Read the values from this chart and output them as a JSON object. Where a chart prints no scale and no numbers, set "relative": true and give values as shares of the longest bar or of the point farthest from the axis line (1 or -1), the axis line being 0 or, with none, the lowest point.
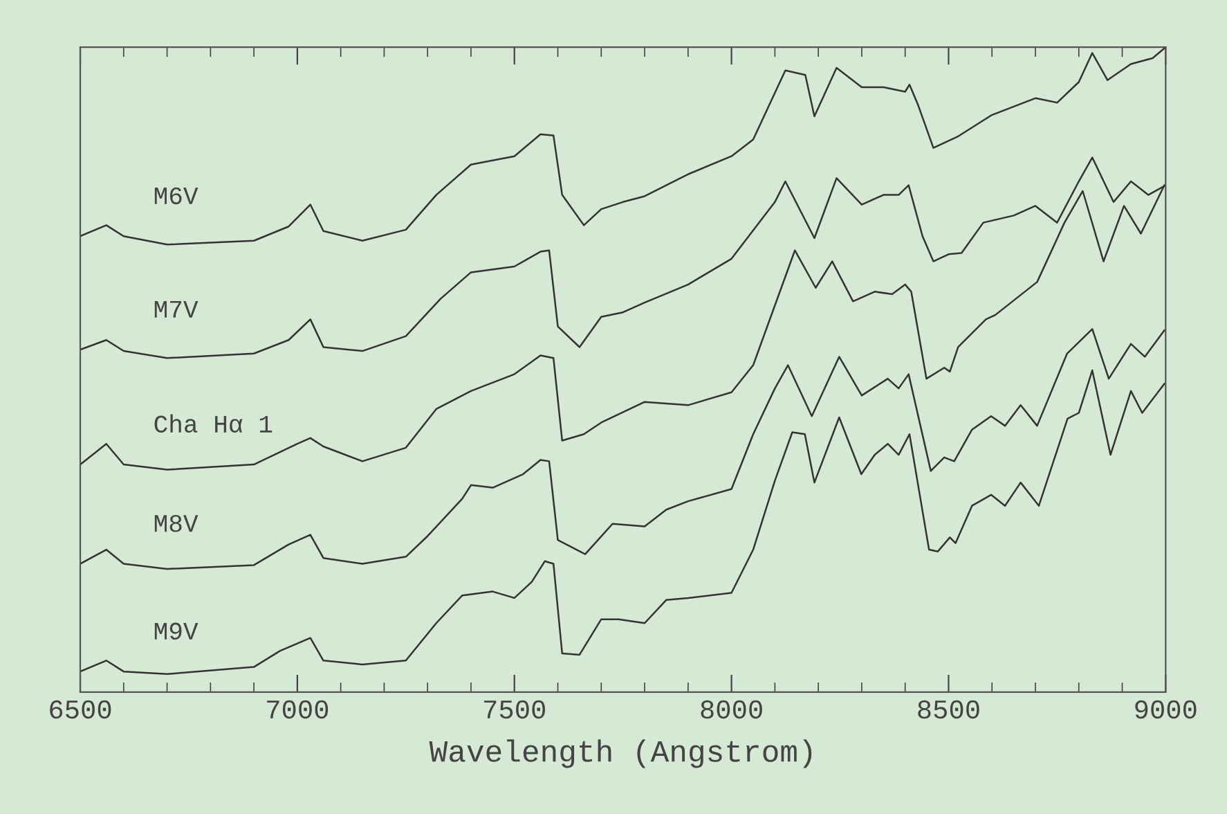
{
  "chart_data": {
    "type": "line",
    "relative": true,
    "xlabel": "Wavelength (Angstrom)",
    "xlim": [
      6500,
      9000
    ],
    "xticks": [
      6500,
      7000,
      7500,
      8000,
      8500,
      9000
    ],
    "grid": false,
    "legend": false,
    "marker": "none",
    "line_style": "solid",
    "series": [
      {
        "name": "M6V",
        "color": "#333333",
        "x": [
          6500,
          6560,
          6600,
          6700,
          6900,
          6980,
          7030,
          7060,
          7150,
          7250,
          7320,
          7400,
          7500,
          7560,
          7590,
          7610,
          7660,
          7700,
          7750,
          7800,
          7900,
          8000,
          8050,
          8124,
          8170,
          8191,
          8242,
          8300,
          8350,
          8400,
          8410,
          8430,
          8465,
          8520,
          8600,
          8700,
          8750,
          8800,
          8831,
          8866,
          8920,
          8970,
          9000
        ],
        "values": [
          0.707,
          0.724,
          0.707,
          0.694,
          0.7,
          0.722,
          0.756,
          0.715,
          0.7,
          0.717,
          0.771,
          0.818,
          0.831,
          0.865,
          0.863,
          0.771,
          0.724,
          0.749,
          0.76,
          0.769,
          0.803,
          0.831,
          0.857,
          0.964,
          0.957,
          0.893,
          0.968,
          0.938,
          0.938,
          0.931,
          0.942,
          0.91,
          0.844,
          0.861,
          0.895,
          0.921,
          0.914,
          0.946,
          0.991,
          0.949,
          0.974,
          0.983,
          1.0
        ]
      },
      {
        "name": "M7V",
        "color": "#333333",
        "x": [
          6500,
          6560,
          6600,
          6700,
          6900,
          6980,
          7030,
          7060,
          7150,
          7250,
          7330,
          7400,
          7500,
          7560,
          7580,
          7600,
          7650,
          7700,
          7750,
          7800,
          7900,
          8000,
          8100,
          8124,
          8191,
          8242,
          8300,
          8350,
          8385,
          8408,
          8440,
          8465,
          8500,
          8530,
          8580,
          8650,
          8700,
          8750,
          8800,
          8831,
          8880,
          8920,
          8960,
          9000
        ],
        "values": [
          0.531,
          0.546,
          0.529,
          0.518,
          0.525,
          0.546,
          0.578,
          0.535,
          0.529,
          0.552,
          0.61,
          0.651,
          0.66,
          0.683,
          0.685,
          0.567,
          0.535,
          0.582,
          0.589,
          0.604,
          0.632,
          0.672,
          0.76,
          0.792,
          0.704,
          0.797,
          0.756,
          0.771,
          0.771,
          0.786,
          0.707,
          0.668,
          0.679,
          0.681,
          0.728,
          0.739,
          0.754,
          0.728,
          0.792,
          0.829,
          0.76,
          0.792,
          0.771,
          0.786
        ]
      },
      {
        "name": "Cha Hα 1",
        "color": "#333333",
        "x": [
          6500,
          6560,
          6600,
          6700,
          6900,
          7000,
          7030,
          7060,
          7150,
          7250,
          7320,
          7400,
          7500,
          7560,
          7590,
          7610,
          7660,
          7700,
          7800,
          7900,
          8000,
          8050,
          8146,
          8194,
          8232,
          8280,
          8330,
          8370,
          8400,
          8414,
          8449,
          8490,
          8503,
          8522,
          8586,
          8608,
          8704,
          8767,
          8809,
          8857,
          8904,
          8943,
          8997
        ],
        "values": [
          0.353,
          0.385,
          0.353,
          0.345,
          0.353,
          0.385,
          0.394,
          0.381,
          0.358,
          0.379,
          0.439,
          0.467,
          0.493,
          0.522,
          0.518,
          0.39,
          0.4,
          0.418,
          0.45,
          0.445,
          0.465,
          0.507,
          0.685,
          0.627,
          0.668,
          0.606,
          0.621,
          0.617,
          0.632,
          0.621,
          0.486,
          0.503,
          0.497,
          0.535,
          0.578,
          0.585,
          0.636,
          0.728,
          0.777,
          0.668,
          0.754,
          0.711,
          0.786
        ]
      },
      {
        "name": "M8V",
        "color": "#333333",
        "x": [
          6500,
          6560,
          6600,
          6700,
          6900,
          6980,
          7030,
          7060,
          7150,
          7250,
          7300,
          7380,
          7400,
          7450,
          7520,
          7560,
          7580,
          7600,
          7663,
          7726,
          7800,
          7850,
          7900,
          8000,
          8050,
          8100,
          8130,
          8185,
          8248,
          8300,
          8360,
          8385,
          8408,
          8459,
          8490,
          8513,
          8554,
          8598,
          8630,
          8666,
          8704,
          8773,
          8831,
          8869,
          8920,
          8952,
          8997
        ],
        "values": [
          0.199,
          0.221,
          0.199,
          0.191,
          0.197,
          0.229,
          0.244,
          0.208,
          0.199,
          0.21,
          0.242,
          0.3,
          0.321,
          0.317,
          0.338,
          0.36,
          0.358,
          0.236,
          0.214,
          0.261,
          0.257,
          0.283,
          0.296,
          0.315,
          0.4,
          0.471,
          0.507,
          0.428,
          0.52,
          0.46,
          0.486,
          0.471,
          0.493,
          0.343,
          0.364,
          0.358,
          0.407,
          0.428,
          0.413,
          0.445,
          0.413,
          0.525,
          0.563,
          0.486,
          0.54,
          0.52,
          0.561
        ]
      },
      {
        "name": "M9V",
        "color": "#333333",
        "x": [
          6500,
          6560,
          6600,
          6700,
          6900,
          6960,
          7030,
          7060,
          7150,
          7250,
          7320,
          7380,
          7450,
          7500,
          7540,
          7570,
          7590,
          7610,
          7650,
          7700,
          7740,
          7800,
          7850,
          7900,
          8000,
          8050,
          8100,
          8140,
          8169,
          8191,
          8248,
          8299,
          8330,
          8360,
          8385,
          8410,
          8455,
          8475,
          8503,
          8516,
          8554,
          8598,
          8630,
          8666,
          8708,
          8774,
          8800,
          8831,
          8873,
          8920,
          8946,
          8997
        ],
        "values": [
          0.032,
          0.049,
          0.032,
          0.028,
          0.039,
          0.064,
          0.084,
          0.049,
          0.043,
          0.049,
          0.107,
          0.15,
          0.156,
          0.146,
          0.171,
          0.203,
          0.199,
          0.06,
          0.058,
          0.113,
          0.113,
          0.107,
          0.143,
          0.146,
          0.154,
          0.221,
          0.328,
          0.403,
          0.4,
          0.325,
          0.426,
          0.338,
          0.368,
          0.385,
          0.368,
          0.4,
          0.221,
          0.218,
          0.24,
          0.231,
          0.289,
          0.306,
          0.289,
          0.325,
          0.289,
          0.424,
          0.433,
          0.499,
          0.368,
          0.467,
          0.433,
          0.478
        ]
      }
    ]
  }
}
